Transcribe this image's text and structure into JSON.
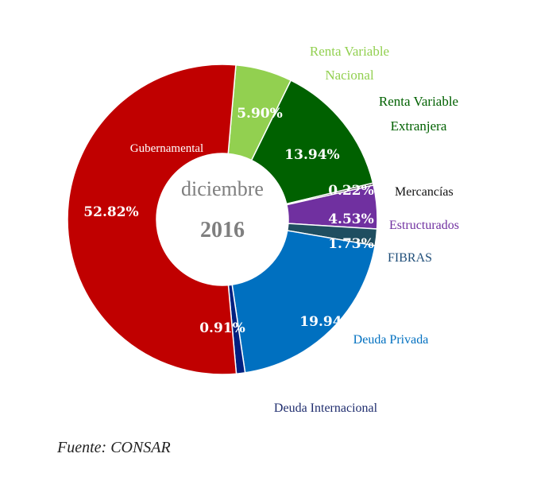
{
  "chart_data": {
    "type": "pie",
    "variant": "donut",
    "center_text": [
      "diciembre",
      "2016"
    ],
    "slices": [
      {
        "label": [
          "Renta Variable",
          "Nacional"
        ],
        "value": 5.9,
        "value_label": "5.90%",
        "color": "#92d050",
        "label_color": "#92d050"
      },
      {
        "label": [
          "Renta Variable",
          "Extranjera"
        ],
        "value": 13.94,
        "value_label": "13.94%",
        "color": "#006100",
        "label_color": "#006100"
      },
      {
        "label": [
          "Mercancías"
        ],
        "value": 0.22,
        "value_label": "0.22%",
        "color": "#1a1a1a",
        "label_color": "#111111"
      },
      {
        "label": [
          "Estructurados"
        ],
        "value": 4.53,
        "value_label": "4.53%",
        "color": "#7030a0",
        "label_color": "#7030a0"
      },
      {
        "label": [
          "FIBRAS"
        ],
        "value": 1.73,
        "value_label": "1.73%",
        "color": "#1f4e60",
        "label_color": "#1f4e79"
      },
      {
        "label": [
          "Deuda Privada"
        ],
        "value": 19.94,
        "value_label": "19.94%",
        "color": "#0070c0",
        "label_color": "#0070c0"
      },
      {
        "label": [
          "Deuda Internacional"
        ],
        "value": 0.91,
        "value_label": "0.91%",
        "color": "#002080",
        "label_color": "#1f2d6e"
      },
      {
        "label": [
          "Gubernamental"
        ],
        "value": 52.82,
        "value_label": "52.82%",
        "color": "#c00000",
        "label_color": "#ffffff"
      }
    ],
    "legend": "none"
  },
  "source_text": "Fuente: CONSAR"
}
